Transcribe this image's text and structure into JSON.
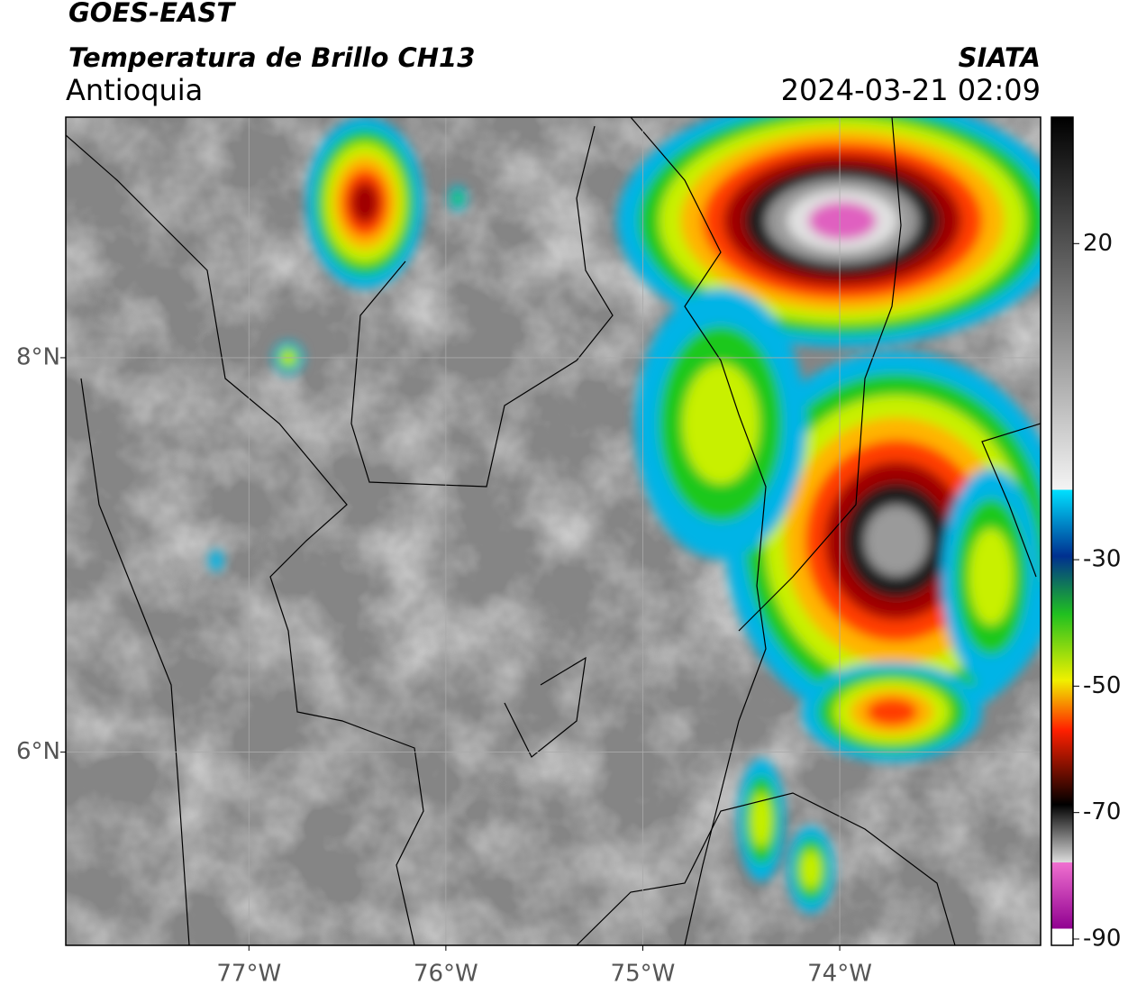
{
  "header": {
    "title": "GOES-EAST",
    "subtitle": "Temperatura de Brillo CH13",
    "region": "Antioquia",
    "source": "SIATA",
    "datetime": "2024-03-21 02:09"
  },
  "map": {
    "xlim": [
      -77.93,
      -72.98
    ],
    "ylim": [
      5.02,
      9.22
    ],
    "xticks": [
      {
        "value": -77,
        "label": "77°W"
      },
      {
        "value": -76,
        "label": "76°W"
      },
      {
        "value": -75,
        "label": "75°W"
      },
      {
        "value": -74,
        "label": "74°W"
      }
    ],
    "yticks": [
      {
        "value": 8,
        "label": "8°N"
      },
      {
        "value": 6,
        "label": "6°N"
      }
    ],
    "grid": true
  },
  "colorbar": {
    "lim": [
      -91,
      40
    ],
    "ticks": [
      20,
      -30,
      -50,
      -70,
      -90
    ]
  }
}
